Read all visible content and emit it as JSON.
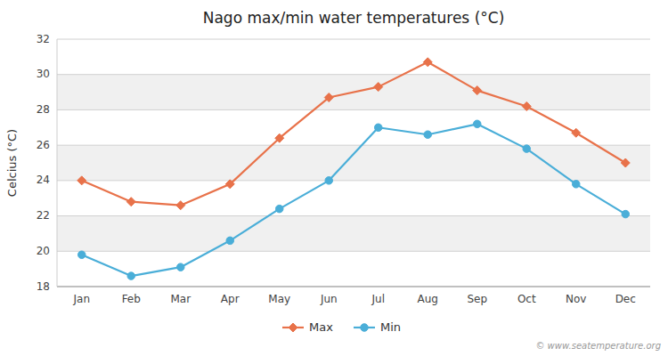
{
  "chart_data": {
    "type": "line",
    "title": "Nago max/min water temperatures (°C)",
    "ylabel": "Celcius (°C)",
    "categories": [
      "Jan",
      "Feb",
      "Mar",
      "Apr",
      "May",
      "Jun",
      "Jul",
      "Aug",
      "Sep",
      "Oct",
      "Nov",
      "Dec"
    ],
    "series": [
      {
        "name": "Max",
        "color": "#e8724a",
        "marker": "diamond",
        "values": [
          24.0,
          22.8,
          22.6,
          23.8,
          26.4,
          28.7,
          29.3,
          30.7,
          29.1,
          28.2,
          26.7,
          25.0
        ]
      },
      {
        "name": "Min",
        "color": "#4aaed8",
        "marker": "circle",
        "values": [
          19.8,
          18.6,
          19.1,
          20.6,
          22.4,
          24.0,
          27.0,
          26.6,
          27.2,
          25.8,
          23.8,
          22.1
        ]
      }
    ],
    "ylim": [
      18,
      32
    ],
    "yticks": [
      18,
      20,
      22,
      24,
      26,
      28,
      30,
      32
    ],
    "grid": true,
    "legend": "bottom",
    "annotations": [
      "© www.seatemperature.org"
    ]
  }
}
